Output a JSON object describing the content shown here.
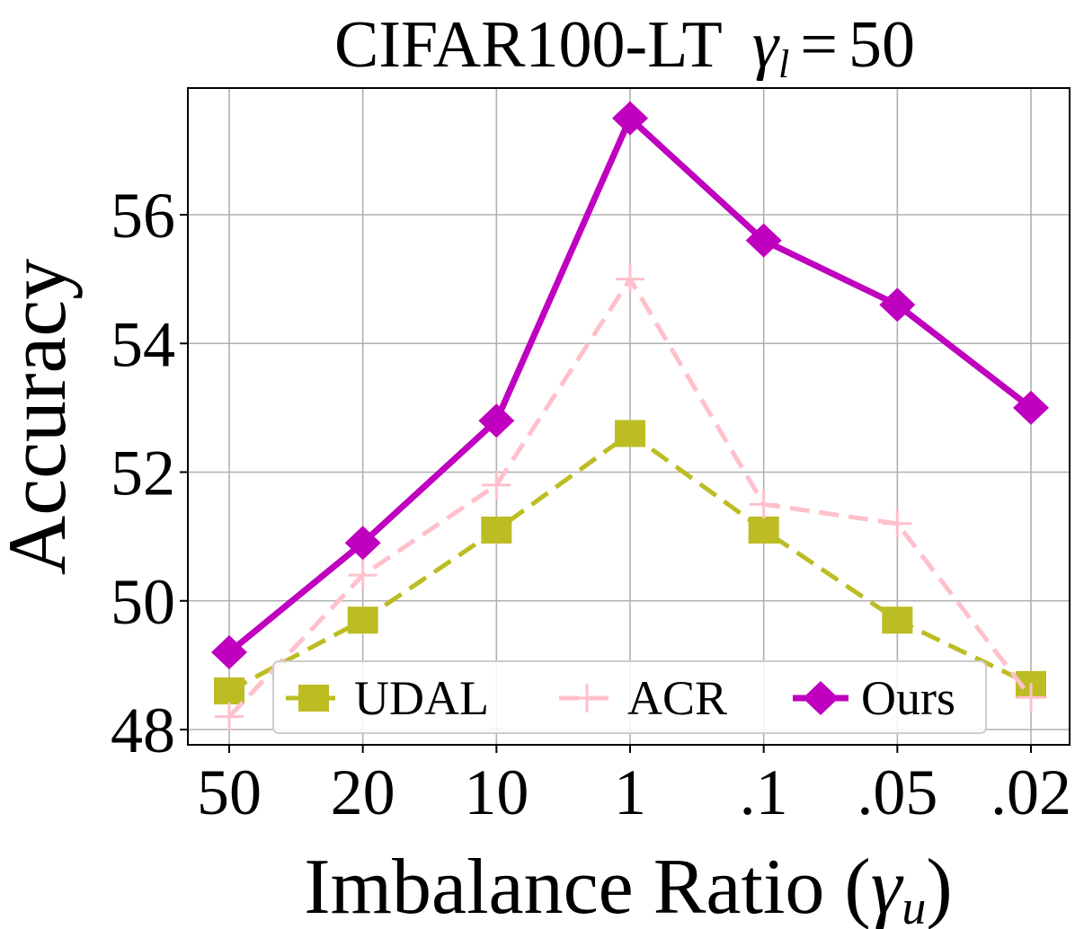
{
  "chart_data": {
    "type": "line",
    "title": "CIFAR100-LT",
    "title_gamma_base": "γ",
    "title_gamma_sub": "l",
    "title_equals": "=",
    "title_value": "50",
    "xlabel": "Imbalance Ratio (",
    "xlabel_gamma_base": "γ",
    "xlabel_gamma_sub": "u",
    "xlabel_close": ")",
    "ylabel": "Accuracy",
    "categories": [
      "50",
      "20",
      "10",
      "1",
      ".1",
      ".05",
      ".02"
    ],
    "yticks": [
      48,
      50,
      52,
      54,
      56
    ],
    "ylim": [
      47.8,
      57.9
    ],
    "grid": true,
    "legend_position": "lower-center",
    "series": [
      {
        "name": "UDAL",
        "color": "#bcbd22",
        "marker": "square",
        "linestyle": "dashed",
        "values": [
          48.6,
          49.7,
          51.1,
          52.6,
          51.1,
          49.7,
          48.7
        ]
      },
      {
        "name": "ACR",
        "color": "#ffc0cb",
        "marker": "plus",
        "linestyle": "dashed",
        "values": [
          48.2,
          50.4,
          51.8,
          55.0,
          51.5,
          51.2,
          48.5
        ]
      },
      {
        "name": "Ours",
        "color": "#bf00bf",
        "marker": "diamond",
        "linestyle": "solid",
        "values": [
          49.2,
          50.9,
          52.8,
          57.5,
          55.6,
          54.6,
          53.0
        ]
      }
    ]
  }
}
